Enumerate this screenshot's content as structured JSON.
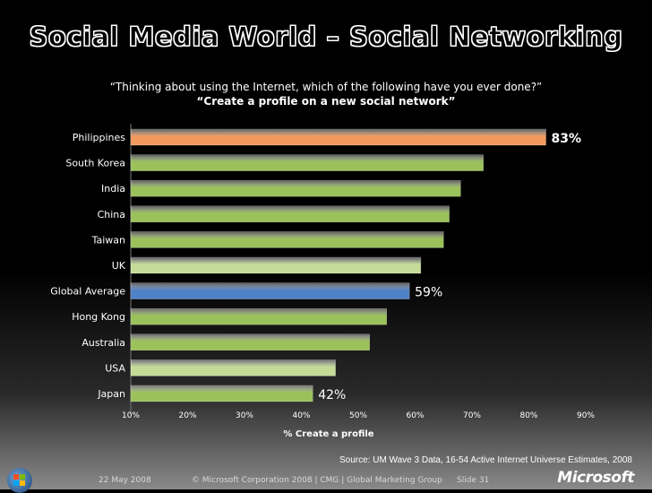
{
  "slide": {
    "title": "Social Media World – Social Networking",
    "question": "“Thinking about using the Internet, which of the following have you ever done?”",
    "subquestion": "“Create a profile on a new social network”",
    "source": "Source: UM Wave 3 Data, 16-54 Active Internet Universe Estimates, 2008",
    "footer_date": "22 May 2008",
    "footer_copyright": "© Microsoft Corporation 2008 | CMG | Global Marketing Group",
    "footer_slide": "Slide 31",
    "logo_text": "Microsoft"
  },
  "chart_data": {
    "type": "bar",
    "orientation": "horizontal",
    "categories": [
      "Philippines",
      "South Korea",
      "India",
      "China",
      "Taiwan",
      "UK",
      "Global Average",
      "Hong Kong",
      "Australia",
      "USA",
      "Japan"
    ],
    "values": [
      83,
      72,
      68,
      66,
      65,
      61,
      59,
      55,
      52,
      46,
      42
    ],
    "data_labels": {
      "Philippines": "83%",
      "Global Average": "59%",
      "Japan": "42%"
    },
    "bar_colors": [
      "#f29a5e",
      "#9bc25a",
      "#9bc25a",
      "#9bc25a",
      "#9bc25a",
      "#c4dc98",
      "#4f81c7",
      "#9bc25a",
      "#9bc25a",
      "#c4dc98",
      "#9bc25a"
    ],
    "xlabel": "% Create a profile",
    "xticks": [
      "10%",
      "20%",
      "30%",
      "40%",
      "50%",
      "60%",
      "70%",
      "80%",
      "90%"
    ],
    "xlim": [
      10,
      90
    ],
    "grid": false
  }
}
